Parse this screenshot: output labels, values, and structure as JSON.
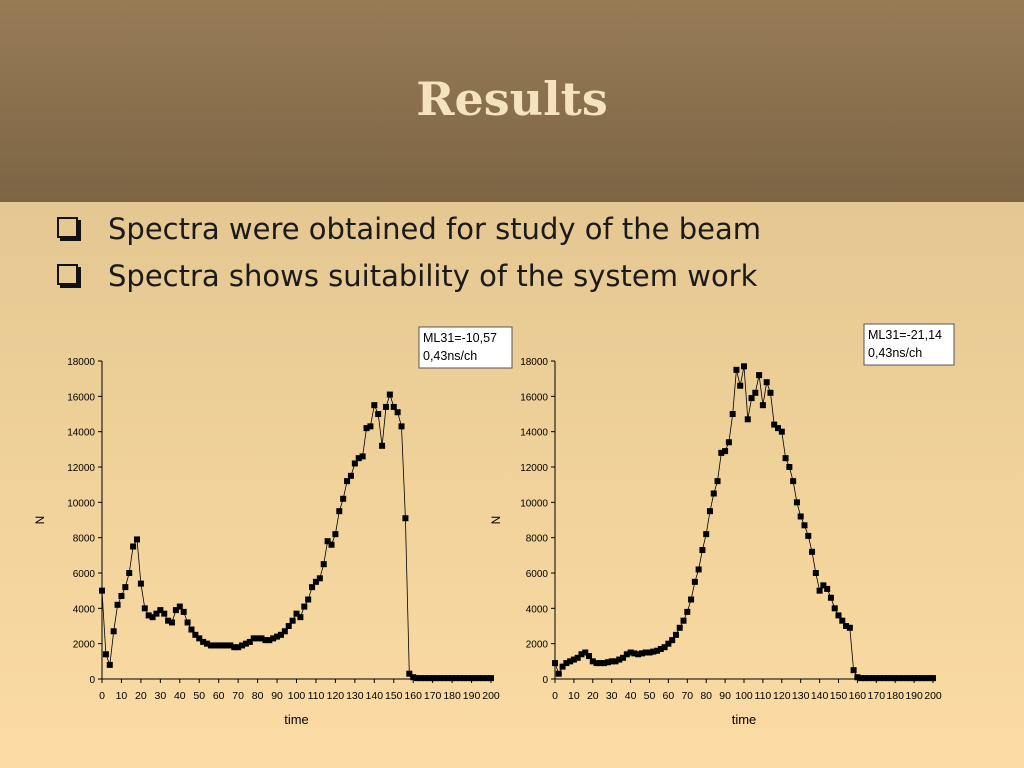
{
  "slide": {
    "title": "Results",
    "bullets": [
      "Spectra were obtained for study of the beam",
      "Spectra shows suitability of the system work"
    ]
  },
  "chart_data": [
    {
      "type": "scatter",
      "xlabel": "time",
      "ylabel": "N",
      "annotation": [
        "ML31=-10,57",
        "0,43ns/ch"
      ],
      "xlim": [
        0,
        200
      ],
      "ylim": [
        0,
        18000
      ],
      "xticks": [
        0,
        10,
        20,
        30,
        40,
        50,
        60,
        70,
        80,
        90,
        100,
        110,
        120,
        130,
        140,
        150,
        160,
        170,
        180,
        190,
        200
      ],
      "yticks": [
        0,
        2000,
        4000,
        6000,
        8000,
        10000,
        12000,
        14000,
        16000,
        18000
      ],
      "color": "#000000",
      "x": [
        0,
        2,
        4,
        6,
        8,
        10,
        12,
        14,
        16,
        18,
        20,
        22,
        24,
        26,
        28,
        30,
        32,
        34,
        36,
        38,
        40,
        42,
        44,
        46,
        48,
        50,
        52,
        54,
        56,
        58,
        60,
        62,
        64,
        66,
        68,
        70,
        72,
        74,
        76,
        78,
        80,
        82,
        84,
        86,
        88,
        90,
        92,
        94,
        96,
        98,
        100,
        102,
        104,
        106,
        108,
        110,
        112,
        114,
        116,
        118,
        120,
        122,
        124,
        126,
        128,
        130,
        132,
        134,
        136,
        138,
        140,
        142,
        144,
        146,
        148,
        150,
        152,
        154,
        156,
        158,
        160,
        162,
        164,
        166,
        168,
        170,
        172,
        174,
        176,
        178,
        180,
        182,
        184,
        186,
        188,
        190,
        192,
        194,
        196,
        198,
        200
      ],
      "values": [
        5000,
        1400,
        800,
        2700,
        4200,
        4700,
        5200,
        6000,
        7500,
        7900,
        5400,
        4000,
        3600,
        3500,
        3700,
        3900,
        3700,
        3300,
        3200,
        3900,
        4100,
        3800,
        3200,
        2800,
        2500,
        2300,
        2100,
        2000,
        1900,
        1900,
        1900,
        1900,
        1900,
        1900,
        1800,
        1800,
        1900,
        2000,
        2100,
        2300,
        2300,
        2300,
        2200,
        2200,
        2300,
        2400,
        2500,
        2700,
        3000,
        3300,
        3700,
        3500,
        4100,
        4500,
        5200,
        5500,
        5700,
        6500,
        7800,
        7600,
        8200,
        9500,
        10200,
        11200,
        11500,
        12200,
        12500,
        12600,
        14200,
        14300,
        15500,
        15000,
        13200,
        15400,
        16100,
        15400,
        15100,
        14300,
        9100,
        300,
        100,
        50,
        50,
        50,
        50,
        50,
        50,
        50,
        50,
        50,
        50,
        50,
        50,
        50,
        50,
        50,
        50,
        50,
        50,
        50,
        50
      ]
    },
    {
      "type": "scatter",
      "xlabel": "time",
      "ylabel": "N",
      "annotation": [
        "ML31=-21,14",
        "0,43ns/ch"
      ],
      "xlim": [
        0,
        200
      ],
      "ylim": [
        0,
        18000
      ],
      "xticks": [
        0,
        10,
        20,
        30,
        40,
        50,
        60,
        70,
        80,
        90,
        100,
        110,
        120,
        130,
        140,
        150,
        160,
        170,
        180,
        190,
        200
      ],
      "yticks": [
        0,
        2000,
        4000,
        6000,
        8000,
        10000,
        12000,
        14000,
        16000,
        18000
      ],
      "color": "#000000",
      "x": [
        0,
        2,
        4,
        6,
        8,
        10,
        12,
        14,
        16,
        18,
        20,
        22,
        24,
        26,
        28,
        30,
        32,
        34,
        36,
        38,
        40,
        42,
        44,
        46,
        48,
        50,
        52,
        54,
        56,
        58,
        60,
        62,
        64,
        66,
        68,
        70,
        72,
        74,
        76,
        78,
        80,
        82,
        84,
        86,
        88,
        90,
        92,
        94,
        96,
        98,
        100,
        102,
        104,
        106,
        108,
        110,
        112,
        114,
        116,
        118,
        120,
        122,
        124,
        126,
        128,
        130,
        132,
        134,
        136,
        138,
        140,
        142,
        144,
        146,
        148,
        150,
        152,
        154,
        156,
        158,
        160,
        162,
        164,
        166,
        168,
        170,
        172,
        174,
        176,
        178,
        180,
        182,
        184,
        186,
        188,
        190,
        192,
        194,
        196,
        198,
        200
      ],
      "values": [
        900,
        300,
        700,
        900,
        1000,
        1100,
        1200,
        1400,
        1500,
        1300,
        1000,
        900,
        900,
        900,
        950,
        1000,
        1000,
        1100,
        1200,
        1400,
        1500,
        1450,
        1400,
        1450,
        1500,
        1500,
        1550,
        1600,
        1700,
        1800,
        2000,
        2200,
        2500,
        2900,
        3300,
        3800,
        4500,
        5500,
        6200,
        7300,
        8200,
        9500,
        10500,
        11200,
        12800,
        12900,
        13400,
        15000,
        17500,
        16600,
        17700,
        14700,
        15900,
        16200,
        17200,
        15500,
        16800,
        16200,
        14400,
        14200,
        14000,
        12500,
        12000,
        11200,
        10000,
        9200,
        8700,
        8100,
        7200,
        6000,
        5000,
        5300,
        5100,
        4600,
        4000,
        3600,
        3300,
        3000,
        2900,
        500,
        100,
        50,
        50,
        50,
        50,
        50,
        50,
        50,
        50,
        50,
        50,
        50,
        50,
        50,
        50,
        50,
        50,
        50,
        50,
        50,
        50
      ]
    }
  ]
}
